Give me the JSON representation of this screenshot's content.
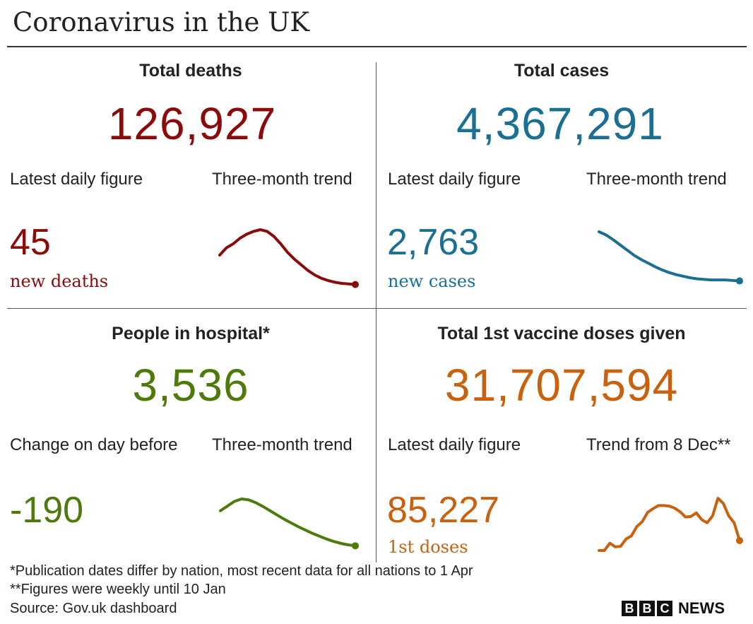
{
  "title": "Coronavirus in the UK",
  "panels": [
    {
      "heading": "Total deaths",
      "total": "126,927",
      "left_label": "Latest daily figure",
      "right_label": "Three-month trend",
      "value": "45",
      "value_sub": "new deaths",
      "color": "#8b0a0a"
    },
    {
      "heading": "Total cases",
      "total": "4,367,291",
      "left_label": "Latest daily figure",
      "right_label": "Three-month trend",
      "value": "2,763",
      "value_sub": "new cases",
      "color": "#1b6f93"
    },
    {
      "heading": "People in hospital*",
      "total": "3,536",
      "left_label": "Change on day before",
      "right_label": "Three-month trend",
      "value": "-190",
      "value_sub": "",
      "color": "#4d7a0b"
    },
    {
      "heading": "Total 1st vaccine doses given",
      "total": "31,707,594",
      "left_label": "Latest daily figure",
      "right_label": "Trend from 8 Dec**",
      "value": "85,227",
      "value_sub": "1st doses",
      "color": "#c8620f"
    }
  ],
  "footnotes": {
    "note1": "*Publication dates differ by nation, most recent data for all nations to 1 Apr",
    "note2": "**Figures were weekly until 10 Jan",
    "source": "Source: Gov.uk dashboard"
  },
  "logo": {
    "letters": [
      "B",
      "B",
      "C"
    ],
    "text": "NEWS"
  },
  "chart_data": [
    {
      "type": "line",
      "title": "Three-month trend",
      "series_of": "Total deaths",
      "color": "#8b0a0a",
      "values": [
        55,
        68,
        75,
        85,
        92,
        97,
        100,
        97,
        88,
        75,
        60,
        48,
        38,
        28,
        20,
        14,
        10,
        7,
        5,
        4,
        3
      ],
      "relative_scale": true,
      "grid": false
    },
    {
      "type": "line",
      "title": "Three-month trend",
      "series_of": "Total cases",
      "color": "#1b6f93",
      "values": [
        100,
        94,
        85,
        75,
        65,
        55,
        47,
        40,
        33,
        27,
        22,
        18,
        15,
        12,
        10,
        9,
        8,
        8,
        8,
        7,
        6
      ],
      "relative_scale": true,
      "grid": false
    },
    {
      "type": "line",
      "title": "Three-month trend",
      "series_of": "People in hospital",
      "color": "#4d7a0b",
      "values": [
        75,
        85,
        95,
        100,
        98,
        92,
        84,
        75,
        66,
        57,
        49,
        41,
        34,
        27,
        21,
        15,
        10,
        6,
        3,
        1
      ],
      "relative_scale": true,
      "grid": false
    },
    {
      "type": "line",
      "title": "Trend from 8 Dec**",
      "series_of": "Total 1st vaccine doses given",
      "color": "#c8620f",
      "values": [
        0,
        0,
        14,
        7,
        8,
        22,
        28,
        46,
        55,
        73,
        80,
        86,
        86,
        85,
        81,
        74,
        64,
        65,
        72,
        59,
        53,
        66,
        100,
        90,
        66,
        53,
        19
      ],
      "relative_scale": true,
      "grid": false
    }
  ]
}
